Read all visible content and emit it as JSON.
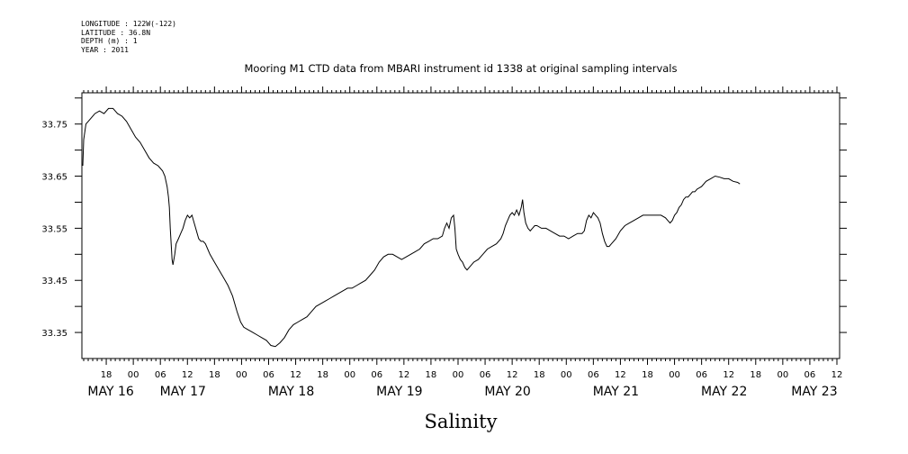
{
  "header": {
    "lines": [
      "LONGITUDE : 122W(-122)",
      "LATITUDE : 36.8N",
      "DEPTH (m) : 1",
      "YEAR : 2011"
    ]
  },
  "chart_data": {
    "type": "line",
    "title": "Mooring M1 CTD data from MBARI instrument id 1338 at original sampling intervals",
    "xlabel": "Salinity",
    "ylabel": "",
    "x_unit": "hours since May 16 00:00, 2011",
    "xlim": [
      12.6,
      180.6
    ],
    "ylim": [
      33.3,
      33.81
    ],
    "y_ticks": [
      33.35,
      33.45,
      33.55,
      33.65,
      33.75
    ],
    "x_hour_ticks": [
      {
        "x": 18,
        "label": "18"
      },
      {
        "x": 24,
        "label": "00"
      },
      {
        "x": 30,
        "label": "06"
      },
      {
        "x": 36,
        "label": "12"
      },
      {
        "x": 42,
        "label": "18"
      },
      {
        "x": 48,
        "label": "00"
      },
      {
        "x": 54,
        "label": "06"
      },
      {
        "x": 60,
        "label": "12"
      },
      {
        "x": 66,
        "label": "18"
      },
      {
        "x": 72,
        "label": "00"
      },
      {
        "x": 78,
        "label": "06"
      },
      {
        "x": 84,
        "label": "12"
      },
      {
        "x": 90,
        "label": "18"
      },
      {
        "x": 96,
        "label": "00"
      },
      {
        "x": 102,
        "label": "06"
      },
      {
        "x": 108,
        "label": "12"
      },
      {
        "x": 114,
        "label": "18"
      },
      {
        "x": 120,
        "label": "00"
      },
      {
        "x": 126,
        "label": "06"
      },
      {
        "x": 132,
        "label": "12"
      },
      {
        "x": 138,
        "label": "18"
      },
      {
        "x": 144,
        "label": "00"
      },
      {
        "x": 150,
        "label": "06"
      },
      {
        "x": 156,
        "label": "12"
      },
      {
        "x": 162,
        "label": "18"
      },
      {
        "x": 168,
        "label": "00"
      },
      {
        "x": 174,
        "label": "06"
      },
      {
        "x": 180,
        "label": "12"
      }
    ],
    "x_date_labels": [
      {
        "x": 19,
        "label": "MAY 16"
      },
      {
        "x": 35,
        "label": "MAY 17"
      },
      {
        "x": 59,
        "label": "MAY 18"
      },
      {
        "x": 83,
        "label": "MAY 19"
      },
      {
        "x": 107,
        "label": "MAY 20"
      },
      {
        "x": 131,
        "label": "MAY 21"
      },
      {
        "x": 155,
        "label": "MAY 22"
      },
      {
        "x": 175,
        "label": "MAY 23"
      }
    ],
    "series": [
      {
        "color": "#000000",
        "points": [
          [
            12.8,
            33.67
          ],
          [
            13.0,
            33.72
          ],
          [
            13.5,
            33.75
          ],
          [
            14.5,
            33.76
          ],
          [
            15.5,
            33.77
          ],
          [
            16.5,
            33.775
          ],
          [
            17.5,
            33.77
          ],
          [
            18.5,
            33.78
          ],
          [
            19.5,
            33.78
          ],
          [
            20.5,
            33.77
          ],
          [
            21.5,
            33.765
          ],
          [
            22.5,
            33.755
          ],
          [
            23.5,
            33.74
          ],
          [
            24.5,
            33.725
          ],
          [
            25.5,
            33.715
          ],
          [
            26.5,
            33.7
          ],
          [
            27.5,
            33.685
          ],
          [
            28.5,
            33.675
          ],
          [
            29.5,
            33.67
          ],
          [
            30.5,
            33.66
          ],
          [
            31.0,
            33.65
          ],
          [
            31.5,
            33.63
          ],
          [
            31.8,
            33.61
          ],
          [
            32.0,
            33.59
          ],
          [
            32.2,
            33.55
          ],
          [
            32.4,
            33.52
          ],
          [
            32.6,
            33.49
          ],
          [
            32.8,
            33.48
          ],
          [
            33.2,
            33.5
          ],
          [
            33.5,
            33.52
          ],
          [
            34.0,
            33.53
          ],
          [
            34.5,
            33.54
          ],
          [
            35.0,
            33.55
          ],
          [
            35.5,
            33.565
          ],
          [
            36.0,
            33.575
          ],
          [
            36.5,
            33.57
          ],
          [
            37.0,
            33.575
          ],
          [
            37.5,
            33.56
          ],
          [
            38.0,
            33.545
          ],
          [
            38.5,
            33.53
          ],
          [
            39.0,
            33.525
          ],
          [
            39.5,
            33.525
          ],
          [
            40.0,
            33.52
          ],
          [
            40.5,
            33.51
          ],
          [
            41.0,
            33.5
          ],
          [
            42.0,
            33.485
          ],
          [
            43.0,
            33.47
          ],
          [
            44.0,
            33.455
          ],
          [
            45.0,
            33.44
          ],
          [
            46.0,
            33.42
          ],
          [
            47.0,
            33.39
          ],
          [
            47.8,
            33.37
          ],
          [
            48.5,
            33.36
          ],
          [
            49.5,
            33.355
          ],
          [
            50.5,
            33.35
          ],
          [
            51.5,
            33.345
          ],
          [
            52.5,
            33.34
          ],
          [
            53.5,
            33.335
          ],
          [
            54.5,
            33.325
          ],
          [
            55.5,
            33.323
          ],
          [
            56.5,
            33.33
          ],
          [
            57.5,
            33.34
          ],
          [
            58.5,
            33.355
          ],
          [
            59.5,
            33.365
          ],
          [
            60.5,
            33.37
          ],
          [
            61.5,
            33.375
          ],
          [
            62.5,
            33.38
          ],
          [
            63.5,
            33.39
          ],
          [
            64.5,
            33.4
          ],
          [
            65.5,
            33.405
          ],
          [
            66.5,
            33.41
          ],
          [
            67.5,
            33.415
          ],
          [
            68.5,
            33.42
          ],
          [
            69.5,
            33.425
          ],
          [
            70.5,
            33.43
          ],
          [
            71.5,
            33.435
          ],
          [
            72.5,
            33.435
          ],
          [
            73.5,
            33.44
          ],
          [
            74.5,
            33.445
          ],
          [
            75.5,
            33.45
          ],
          [
            76.5,
            33.46
          ],
          [
            77.5,
            33.47
          ],
          [
            78.5,
            33.485
          ],
          [
            79.5,
            33.495
          ],
          [
            80.5,
            33.5
          ],
          [
            81.5,
            33.5
          ],
          [
            82.5,
            33.495
          ],
          [
            83.5,
            33.49
          ],
          [
            84.5,
            33.495
          ],
          [
            85.5,
            33.5
          ],
          [
            86.5,
            33.505
          ],
          [
            87.5,
            33.51
          ],
          [
            88.5,
            33.52
          ],
          [
            89.5,
            33.525
          ],
          [
            90.5,
            33.53
          ],
          [
            91.5,
            33.53
          ],
          [
            92.5,
            33.535
          ],
          [
            93.0,
            33.55
          ],
          [
            93.5,
            33.56
          ],
          [
            94.0,
            33.55
          ],
          [
            94.5,
            33.57
          ],
          [
            95.0,
            33.575
          ],
          [
            95.3,
            33.55
          ],
          [
            95.6,
            33.51
          ],
          [
            96.0,
            33.5
          ],
          [
            96.5,
            33.49
          ],
          [
            97.0,
            33.485
          ],
          [
            97.5,
            33.475
          ],
          [
            98.0,
            33.47
          ],
          [
            98.5,
            33.475
          ],
          [
            99.0,
            33.48
          ],
          [
            99.5,
            33.485
          ],
          [
            100.5,
            33.49
          ],
          [
            101.5,
            33.5
          ],
          [
            102.5,
            33.51
          ],
          [
            103.5,
            33.515
          ],
          [
            104.5,
            33.52
          ],
          [
            105.5,
            33.53
          ],
          [
            106.0,
            33.54
          ],
          [
            106.5,
            33.555
          ],
          [
            107.0,
            33.565
          ],
          [
            107.5,
            33.575
          ],
          [
            108.0,
            33.58
          ],
          [
            108.5,
            33.575
          ],
          [
            109.0,
            33.585
          ],
          [
            109.5,
            33.575
          ],
          [
            110.0,
            33.59
          ],
          [
            110.3,
            33.605
          ],
          [
            110.6,
            33.58
          ],
          [
            111.0,
            33.56
          ],
          [
            111.5,
            33.55
          ],
          [
            112.0,
            33.545
          ],
          [
            112.5,
            33.55
          ],
          [
            113.0,
            33.555
          ],
          [
            113.5,
            33.555
          ],
          [
            114.5,
            33.55
          ],
          [
            115.5,
            33.55
          ],
          [
            116.5,
            33.545
          ],
          [
            117.5,
            33.54
          ],
          [
            118.5,
            33.535
          ],
          [
            119.5,
            33.535
          ],
          [
            120.5,
            33.53
          ],
          [
            121.5,
            33.535
          ],
          [
            122.5,
            33.54
          ],
          [
            123.5,
            33.54
          ],
          [
            124.0,
            33.545
          ],
          [
            124.5,
            33.565
          ],
          [
            125.0,
            33.575
          ],
          [
            125.5,
            33.57
          ],
          [
            126.0,
            33.58
          ],
          [
            126.5,
            33.575
          ],
          [
            127.0,
            33.57
          ],
          [
            127.5,
            33.56
          ],
          [
            128.0,
            33.54
          ],
          [
            128.5,
            33.525
          ],
          [
            129.0,
            33.515
          ],
          [
            129.5,
            33.515
          ],
          [
            130.0,
            33.52
          ],
          [
            131.0,
            33.53
          ],
          [
            132.0,
            33.545
          ],
          [
            133.0,
            33.555
          ],
          [
            134.0,
            33.56
          ],
          [
            135.0,
            33.565
          ],
          [
            136.0,
            33.57
          ],
          [
            137.0,
            33.575
          ],
          [
            138.0,
            33.575
          ],
          [
            139.0,
            33.575
          ],
          [
            140.0,
            33.575
          ],
          [
            141.0,
            33.575
          ],
          [
            142.0,
            33.57
          ],
          [
            142.5,
            33.565
          ],
          [
            143.0,
            33.56
          ],
          [
            143.5,
            33.565
          ],
          [
            144.0,
            33.575
          ],
          [
            144.5,
            33.58
          ],
          [
            145.0,
            33.59
          ],
          [
            145.5,
            33.595
          ],
          [
            146.0,
            33.605
          ],
          [
            146.5,
            33.61
          ],
          [
            147.0,
            33.61
          ],
          [
            147.5,
            33.615
          ],
          [
            148.0,
            33.62
          ],
          [
            148.5,
            33.62
          ],
          [
            149.0,
            33.625
          ],
          [
            150.0,
            33.63
          ],
          [
            151.0,
            33.64
          ],
          [
            152.0,
            33.645
          ],
          [
            153.0,
            33.65
          ],
          [
            154.0,
            33.648
          ],
          [
            155.0,
            33.645
          ],
          [
            156.0,
            33.645
          ],
          [
            157.0,
            33.64
          ],
          [
            158.0,
            33.638
          ],
          [
            158.5,
            33.635
          ]
        ]
      }
    ]
  }
}
